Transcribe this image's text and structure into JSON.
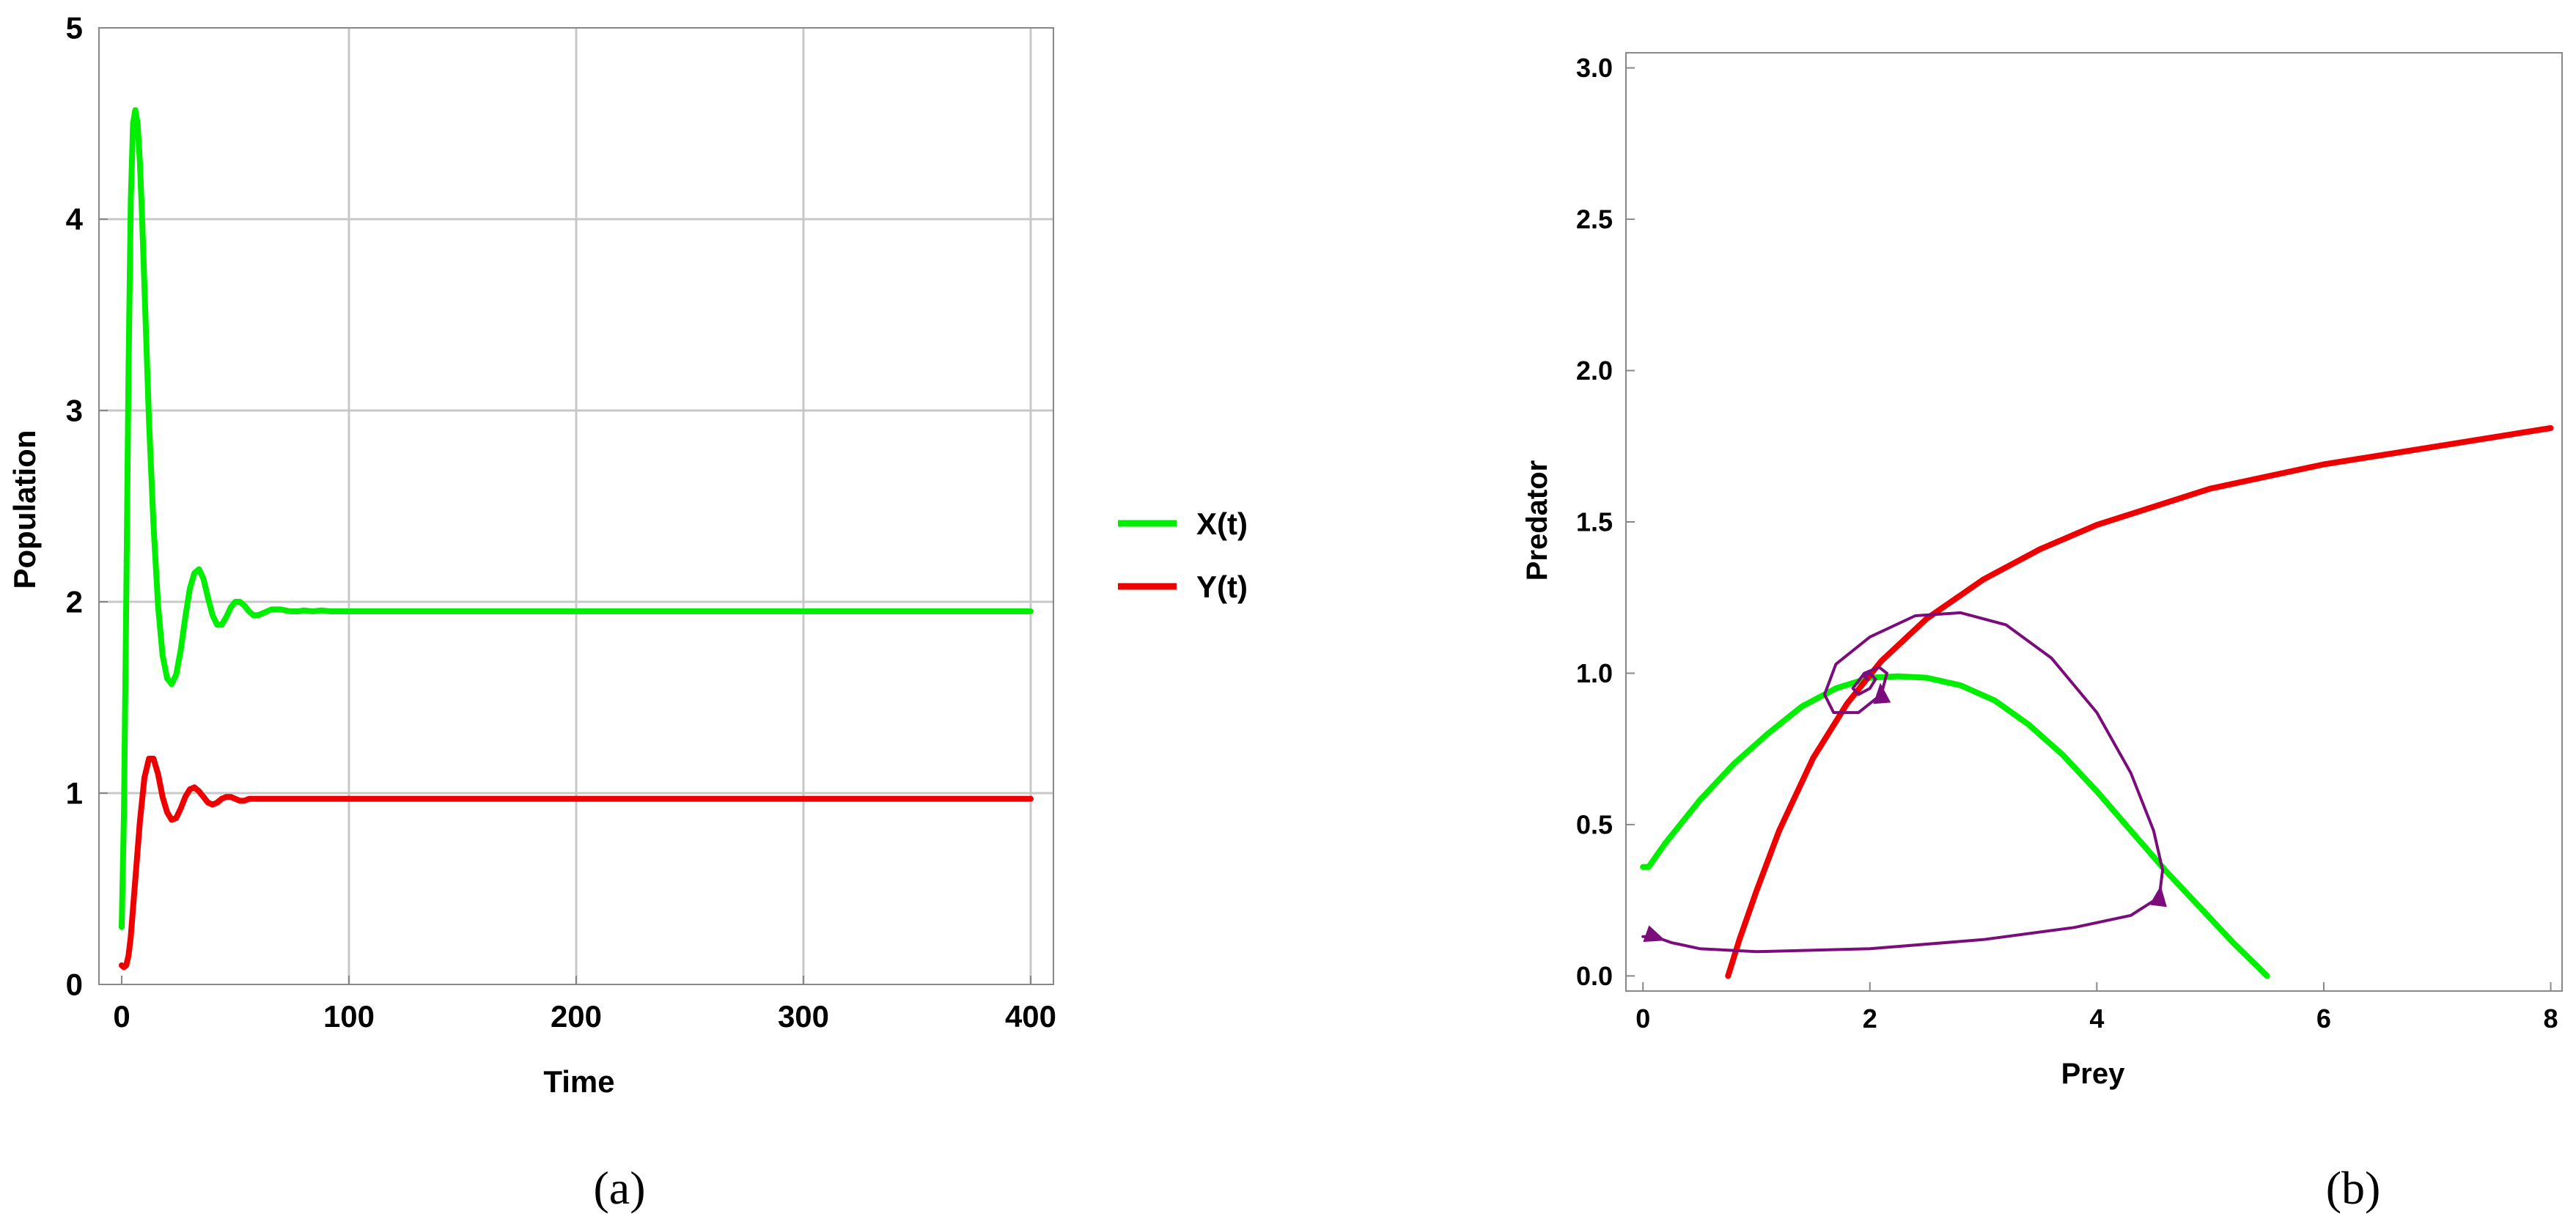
{
  "chart_data": [
    {
      "type": "line",
      "panel_label": "(a)",
      "xlabel": "Time",
      "ylabel": "Population",
      "xlim": [
        -10,
        410
      ],
      "ylim": [
        0,
        5
      ],
      "xticks": [
        0,
        100,
        200,
        300,
        400
      ],
      "yticks": [
        0,
        1,
        2,
        3,
        4,
        5
      ],
      "grid": true,
      "legend_position": "right",
      "colors": {
        "X(t)": "#00ee00",
        "Y(t)": "#ee0000"
      },
      "series": [
        {
          "name": "X(t)",
          "color": "#00ee00",
          "x": [
            0,
            1,
            2,
            3,
            4,
            5,
            6,
            7,
            8,
            9,
            10,
            12,
            14,
            16,
            18,
            20,
            22,
            24,
            26,
            28,
            30,
            32,
            34,
            36,
            38,
            40,
            42,
            44,
            46,
            48,
            50,
            52,
            54,
            56,
            58,
            60,
            62,
            64,
            66,
            68,
            70,
            72,
            74,
            76,
            78,
            80,
            84,
            88,
            92,
            96,
            100,
            110,
            120,
            150,
            200,
            250,
            300,
            350,
            400
          ],
          "y": [
            0.3,
            0.9,
            2.0,
            3.2,
            4.1,
            4.5,
            4.57,
            4.5,
            4.3,
            4.0,
            3.65,
            2.95,
            2.4,
            1.98,
            1.72,
            1.6,
            1.57,
            1.62,
            1.75,
            1.92,
            2.07,
            2.15,
            2.17,
            2.12,
            2.02,
            1.93,
            1.88,
            1.88,
            1.92,
            1.97,
            2.0,
            2.0,
            1.98,
            1.95,
            1.93,
            1.93,
            1.94,
            1.95,
            1.96,
            1.96,
            1.96,
            1.955,
            1.95,
            1.95,
            1.95,
            1.955,
            1.95,
            1.955,
            1.95,
            1.95,
            1.95,
            1.95,
            1.95,
            1.95,
            1.95,
            1.95,
            1.95,
            1.95,
            1.95
          ]
        },
        {
          "name": "Y(t)",
          "color": "#ee0000",
          "x": [
            0,
            1,
            2,
            3,
            4,
            6,
            8,
            10,
            12,
            14,
            16,
            18,
            20,
            22,
            24,
            26,
            28,
            30,
            32,
            34,
            36,
            38,
            40,
            42,
            44,
            46,
            48,
            50,
            52,
            54,
            56,
            58,
            60,
            64,
            68,
            72,
            76,
            80,
            90,
            100,
            120,
            150,
            200,
            250,
            300,
            350,
            400
          ],
          "y": [
            0.1,
            0.09,
            0.1,
            0.15,
            0.25,
            0.55,
            0.85,
            1.08,
            1.18,
            1.18,
            1.1,
            0.98,
            0.9,
            0.86,
            0.87,
            0.92,
            0.98,
            1.02,
            1.03,
            1.01,
            0.98,
            0.95,
            0.94,
            0.95,
            0.97,
            0.98,
            0.98,
            0.97,
            0.96,
            0.96,
            0.97,
            0.97,
            0.97,
            0.97,
            0.97,
            0.97,
            0.97,
            0.97,
            0.97,
            0.97,
            0.97,
            0.97,
            0.97,
            0.97,
            0.97,
            0.97,
            0.97
          ]
        }
      ]
    },
    {
      "type": "line",
      "panel_label": "(b)",
      "xlabel": "Prey",
      "ylabel": "Predator",
      "xlim": [
        -0.15,
        8.1
      ],
      "ylim": [
        -0.05,
        3.05
      ],
      "xticks": [
        0,
        2,
        4,
        6,
        8
      ],
      "yticks": [
        "0.0",
        "0.5",
        "1.0",
        "1.5",
        "2.0",
        "2.5",
        "3.0"
      ],
      "grid": false,
      "colors": {
        "prey_nullcline": "#00ee00",
        "predator_nullcline": "#ee0000",
        "trajectory": "#7b0c7b"
      },
      "series": [
        {
          "color": "#00ee00",
          "x": [
            0.0,
            0.05,
            0.2,
            0.5,
            0.8,
            1.1,
            1.4,
            1.7,
            2.0,
            2.25,
            2.5,
            2.8,
            3.1,
            3.4,
            3.7,
            4.0,
            4.3,
            4.6,
            4.9,
            5.2,
            5.5
          ],
          "y": [
            0.36,
            0.36,
            0.44,
            0.58,
            0.7,
            0.8,
            0.89,
            0.95,
            0.985,
            0.99,
            0.985,
            0.96,
            0.91,
            0.83,
            0.73,
            0.61,
            0.48,
            0.35,
            0.23,
            0.11,
            0.0
          ]
        },
        {
          "color": "#ee0000",
          "x": [
            0.75,
            0.85,
            1.0,
            1.2,
            1.5,
            1.8,
            2.1,
            2.5,
            3.0,
            3.5,
            4.0,
            5.0,
            6.0,
            7.0,
            8.0
          ],
          "y": [
            0.0,
            0.12,
            0.28,
            0.48,
            0.72,
            0.9,
            1.04,
            1.18,
            1.31,
            1.41,
            1.49,
            1.61,
            1.69,
            1.75,
            1.81
          ]
        },
        {
          "color": "#7b0c7b",
          "x": [
            0.0,
            0.1,
            0.25,
            0.5,
            1.0,
            2.0,
            3.0,
            3.8,
            4.3,
            4.55,
            4.58,
            4.5,
            4.3,
            4.0,
            3.6,
            3.2,
            2.8,
            2.4,
            2.0,
            1.7,
            1.6,
            1.68,
            1.9,
            2.1,
            2.15,
            2.08,
            1.95,
            1.85,
            1.9,
            2.0,
            2.05,
            2.0,
            1.95,
            1.98
          ],
          "y": [
            0.13,
            0.13,
            0.11,
            0.09,
            0.08,
            0.09,
            0.12,
            0.16,
            0.2,
            0.26,
            0.35,
            0.48,
            0.67,
            0.87,
            1.05,
            1.16,
            1.2,
            1.19,
            1.12,
            1.03,
            0.93,
            0.87,
            0.87,
            0.93,
            1.0,
            1.02,
            1.0,
            0.95,
            0.93,
            0.95,
            0.98,
            1.0,
            0.99,
            0.98
          ]
        }
      ]
    }
  ]
}
